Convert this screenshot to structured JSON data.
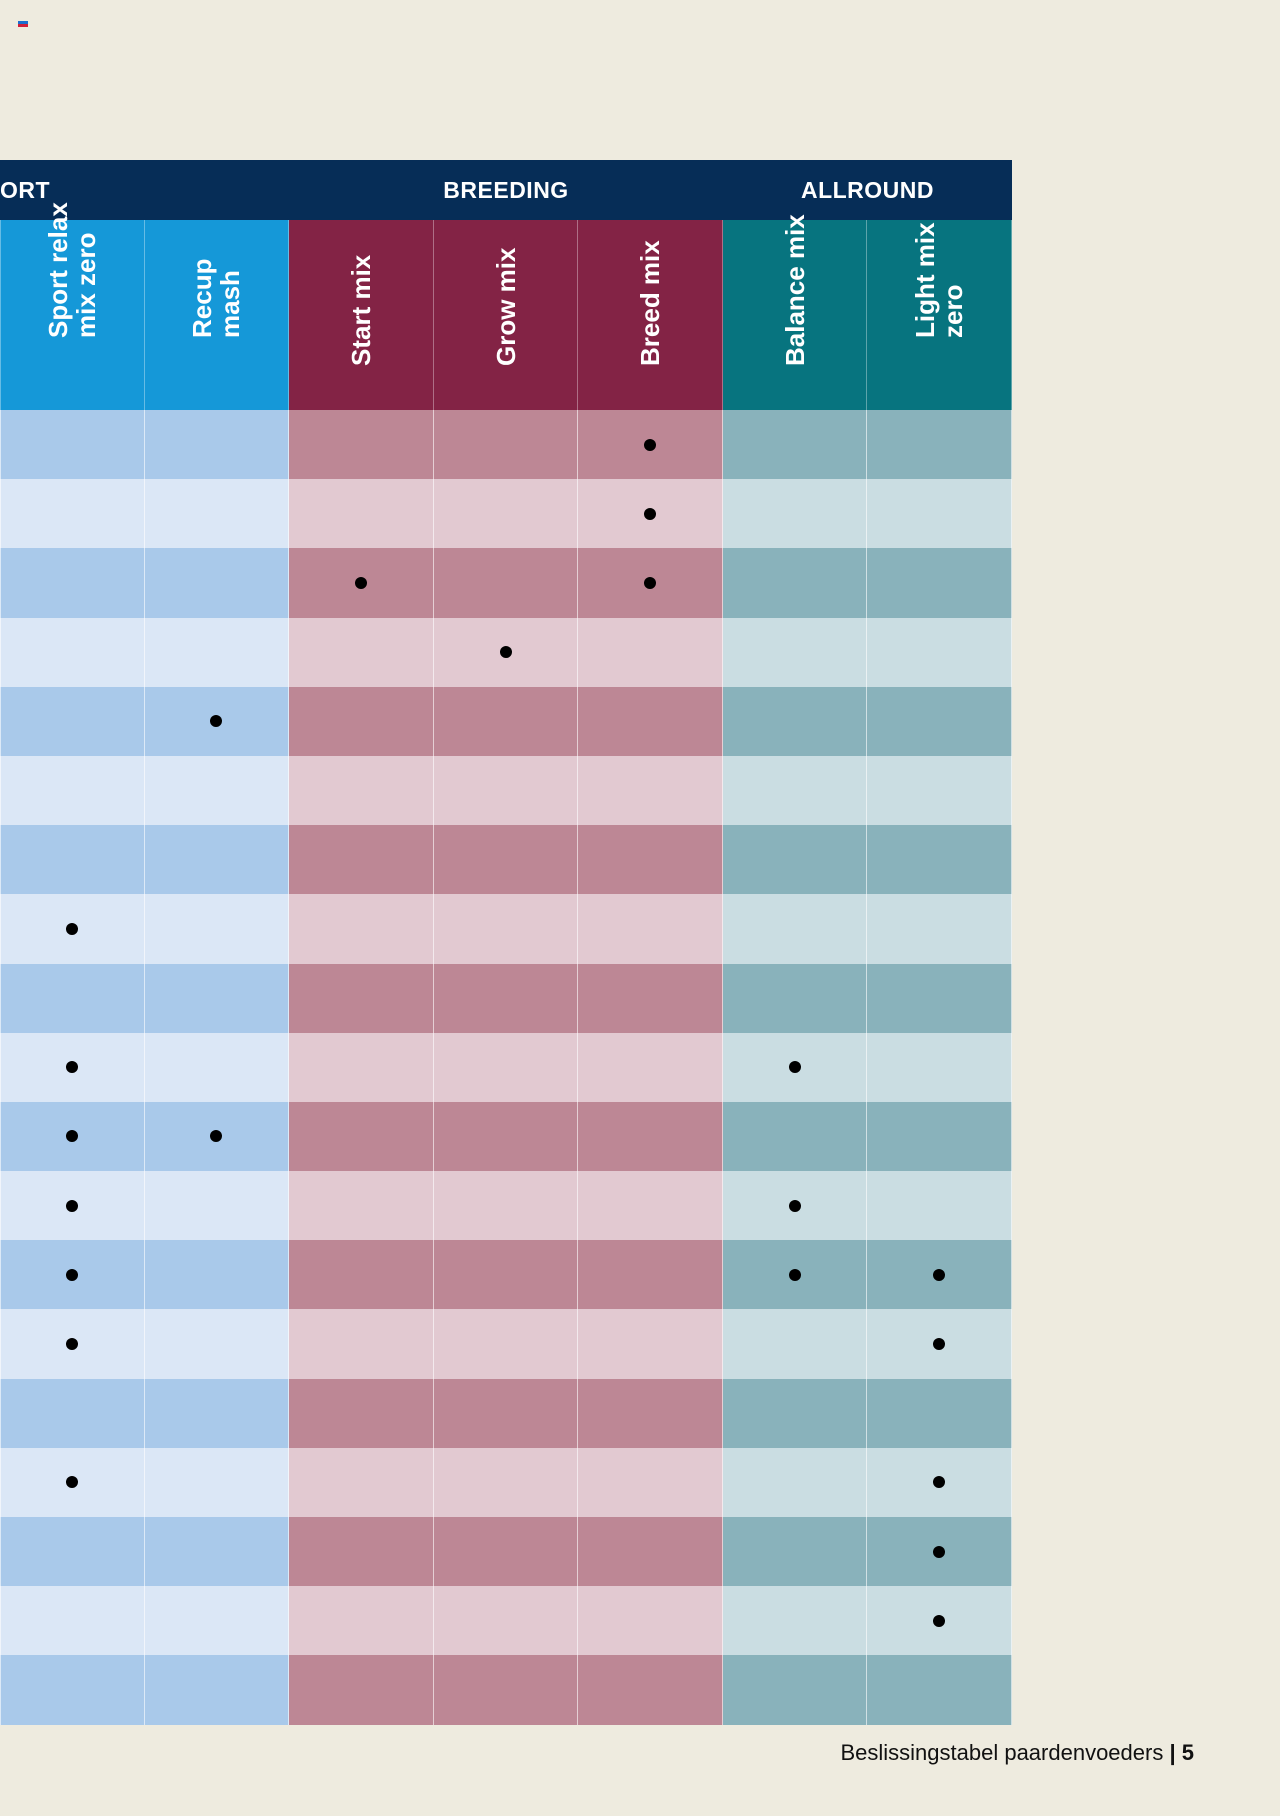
{
  "groups": [
    {
      "label": "ORT",
      "key": "sport"
    },
    {
      "label": "BREEDING",
      "key": "breeding"
    },
    {
      "label": "ALLROUND",
      "key": "allround"
    }
  ],
  "colors": {
    "sport": {
      "header": "#1598d8",
      "dark": "#a9c9ea",
      "light": "#dbe7f6"
    },
    "breeding": {
      "header": "#832345",
      "dark": "#bd8795",
      "light": "#e2c9d1"
    },
    "allround": {
      "header": "#07747f",
      "dark": "#89b2bb",
      "light": "#cadde2"
    }
  },
  "columns": [
    {
      "label": "Sport relax\nmix zero",
      "group": "sport"
    },
    {
      "label": "Recup\nmash",
      "group": "sport"
    },
    {
      "label": "Start mix",
      "group": "breeding"
    },
    {
      "label": "Grow mix",
      "group": "breeding"
    },
    {
      "label": "Breed mix",
      "group": "breeding"
    },
    {
      "label": "Balance mix",
      "group": "allround"
    },
    {
      "label": "Light mix\nzero",
      "group": "allround"
    }
  ],
  "marks": [
    [
      0,
      0,
      0,
      0,
      1,
      0,
      0
    ],
    [
      0,
      0,
      0,
      0,
      1,
      0,
      0
    ],
    [
      0,
      0,
      1,
      0,
      1,
      0,
      0
    ],
    [
      0,
      0,
      0,
      1,
      0,
      0,
      0
    ],
    [
      0,
      1,
      0,
      0,
      0,
      0,
      0
    ],
    [
      0,
      0,
      0,
      0,
      0,
      0,
      0
    ],
    [
      0,
      0,
      0,
      0,
      0,
      0,
      0
    ],
    [
      1,
      0,
      0,
      0,
      0,
      0,
      0
    ],
    [
      0,
      0,
      0,
      0,
      0,
      0,
      0
    ],
    [
      1,
      0,
      0,
      0,
      0,
      1,
      0
    ],
    [
      1,
      1,
      0,
      0,
      0,
      0,
      0
    ],
    [
      1,
      0,
      0,
      0,
      0,
      1,
      0
    ],
    [
      1,
      0,
      0,
      0,
      0,
      1,
      1
    ],
    [
      1,
      0,
      0,
      0,
      0,
      0,
      1
    ],
    [
      0,
      0,
      0,
      0,
      0,
      0,
      0
    ],
    [
      1,
      0,
      0,
      0,
      0,
      0,
      1
    ],
    [
      0,
      0,
      0,
      0,
      0,
      0,
      1
    ],
    [
      0,
      0,
      0,
      0,
      0,
      0,
      1
    ],
    [
      0,
      0,
      0,
      0,
      0,
      0,
      0
    ]
  ],
  "footer": {
    "title": "Beslissingstabel paardenvoeders",
    "separator": "|",
    "page_number": "5"
  }
}
